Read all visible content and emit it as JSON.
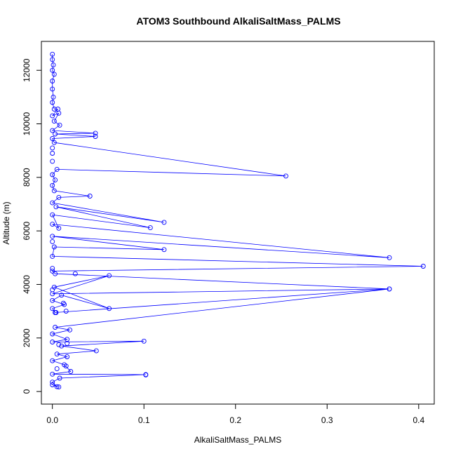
{
  "chart_data": {
    "type": "line",
    "title": "ATOM3 Southbound AlkaliSaltMass_PALMS",
    "xlabel": "AlkaliSaltMass_PALMS",
    "ylabel": "Altitude (m)",
    "xlim": [
      -0.012,
      0.417
    ],
    "ylim": [
      -470,
      13080
    ],
    "xticks": [
      0.0,
      0.1,
      0.2,
      0.3,
      0.4
    ],
    "xtick_labels": [
      "0.0",
      "0.1",
      "0.2",
      "0.3",
      "0.4"
    ],
    "yticks": [
      0,
      2000,
      4000,
      6000,
      8000,
      10000,
      12000
    ],
    "ytick_labels": [
      "0",
      "2000",
      "4000",
      "6000",
      "8000",
      "10000",
      "12000"
    ],
    "series_color": "#0000ff",
    "marker": "open-circle",
    "points": [
      [
        0.0,
        12600
      ],
      [
        0.0,
        12400
      ],
      [
        0.001,
        12200
      ],
      [
        0.0,
        12000
      ],
      [
        0.002,
        11850
      ],
      [
        0.0,
        11600
      ],
      [
        0.0,
        11300
      ],
      [
        0.001,
        11000
      ],
      [
        0.0,
        10800
      ],
      [
        0.002,
        10550
      ],
      [
        0.006,
        10550
      ],
      [
        0.0,
        10300
      ],
      [
        0.007,
        10400
      ],
      [
        0.002,
        10100
      ],
      [
        0.008,
        9950
      ],
      [
        0.0,
        9750
      ],
      [
        0.047,
        9650
      ],
      [
        0.003,
        9620
      ],
      [
        0.047,
        9530
      ],
      [
        0.0,
        9450
      ],
      [
        0.002,
        9300
      ],
      [
        0.255,
        8050
      ],
      [
        0.005,
        8300
      ],
      [
        0.0,
        8100
      ],
      [
        0.003,
        7900
      ],
      [
        0.0,
        7700
      ],
      [
        0.002,
        7500
      ],
      [
        0.041,
        7300
      ],
      [
        0.007,
        7250
      ],
      [
        0.0,
        7050
      ],
      [
        0.122,
        6320
      ],
      [
        0.004,
        6900
      ],
      [
        0.107,
        6120
      ],
      [
        0.0,
        6600
      ],
      [
        0.007,
        6100
      ],
      [
        0.0,
        6250
      ],
      [
        0.368,
        5000
      ],
      [
        0.0,
        5800
      ],
      [
        0.122,
        5300
      ],
      [
        0.002,
        5400
      ],
      [
        0.0,
        5050
      ],
      [
        0.405,
        4680
      ],
      [
        0.0,
        4500
      ],
      [
        0.003,
        4400
      ],
      [
        0.368,
        3830
      ],
      [
        0.0,
        3650
      ],
      [
        0.062,
        4330
      ],
      [
        0.002,
        3900
      ],
      [
        0.062,
        3100
      ],
      [
        0.01,
        3600
      ],
      [
        0.0,
        3400
      ],
      [
        0.013,
        3250
      ],
      [
        0.0,
        3100
      ],
      [
        0.003,
        2950
      ],
      [
        0.368,
        3830
      ],
      [
        0.003,
        2400
      ],
      [
        0.019,
        2300
      ],
      [
        0.0,
        2150
      ],
      [
        0.016,
        1950
      ],
      [
        0.0,
        1850
      ],
      [
        0.1,
        1880
      ],
      [
        0.01,
        1700
      ],
      [
        0.048,
        1520
      ],
      [
        0.005,
        1400
      ],
      [
        0.016,
        1300
      ],
      [
        0.0,
        1150
      ],
      [
        0.013,
        1000
      ],
      [
        0.02,
        750
      ],
      [
        0.0,
        650
      ],
      [
        0.102,
        630
      ],
      [
        0.008,
        500
      ],
      [
        0.0,
        350
      ],
      [
        0.005,
        180
      ],
      [
        0.0,
        250
      ],
      [
        0.007,
        170
      ]
    ],
    "extra_markers": [
      [
        0.025,
        4400
      ],
      [
        0.007,
        1750
      ],
      [
        0.012,
        3300
      ],
      [
        0.015,
        3000
      ],
      [
        0.016,
        1800
      ],
      [
        0.015,
        950
      ],
      [
        0.102,
        620
      ],
      [
        0.005,
        850
      ],
      [
        0.0,
        3800
      ],
      [
        0.0,
        4600
      ],
      [
        0.0,
        5600
      ],
      [
        0.0,
        8600
      ],
      [
        0.0,
        8900
      ],
      [
        0.0,
        9100
      ],
      [
        0.004,
        2950
      ]
    ]
  }
}
